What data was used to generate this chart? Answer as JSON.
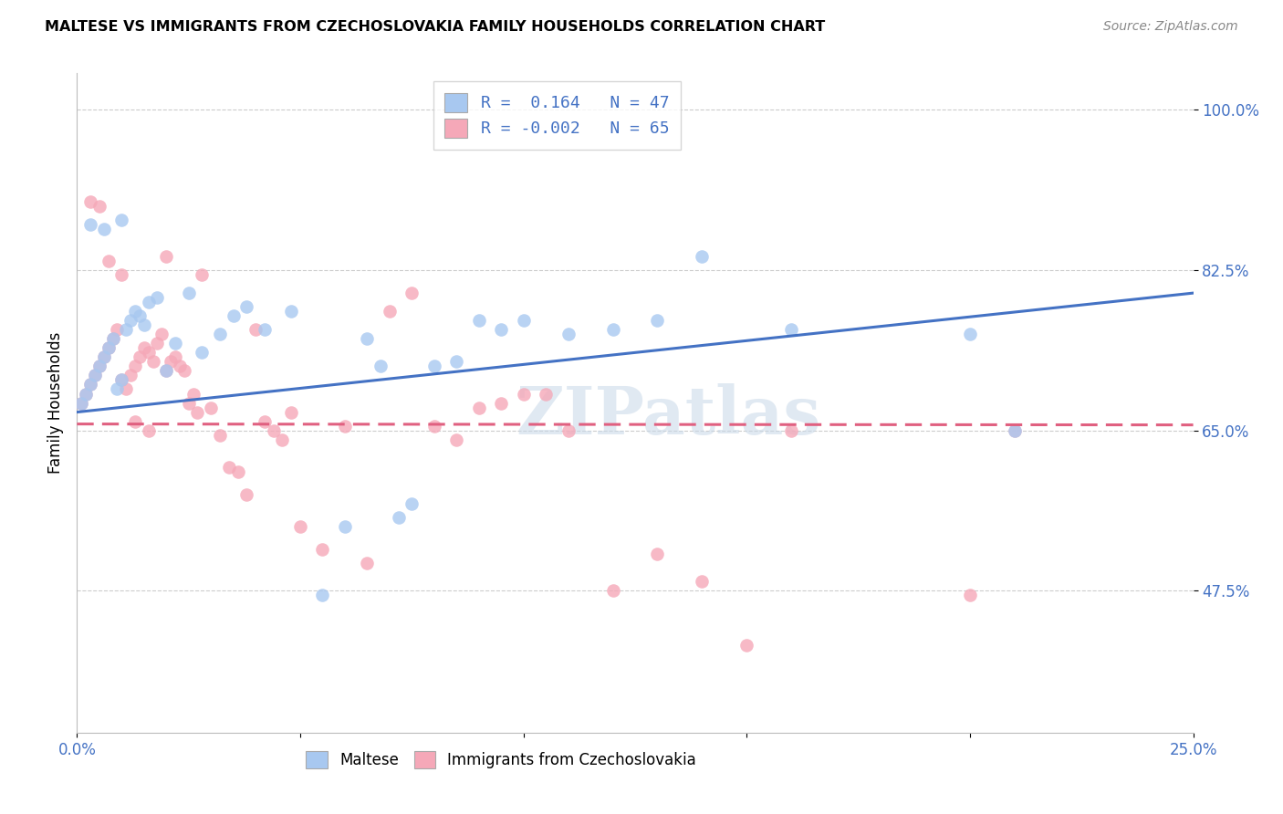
{
  "title": "MALTESE VS IMMIGRANTS FROM CZECHOSLOVAKIA FAMILY HOUSEHOLDS CORRELATION CHART",
  "source": "Source: ZipAtlas.com",
  "ylabel": "Family Households",
  "xlim": [
    0.0,
    0.25
  ],
  "ylim": [
    0.32,
    1.04
  ],
  "xticks": [
    0.0,
    0.05,
    0.1,
    0.15,
    0.2,
    0.25
  ],
  "xticklabels": [
    "0.0%",
    "",
    "",
    "",
    "",
    "25.0%"
  ],
  "yticks": [
    0.475,
    0.65,
    0.825,
    1.0
  ],
  "yticklabels": [
    "47.5%",
    "65.0%",
    "82.5%",
    "100.0%"
  ],
  "legend1_R": " 0.164",
  "legend1_N": "47",
  "legend2_R": "-0.002",
  "legend2_N": "65",
  "blue_color": "#A8C8F0",
  "pink_color": "#F5A8B8",
  "blue_line_color": "#4472C4",
  "pink_line_color": "#E06080",
  "watermark": "ZIPatlas",
  "maltese_x": [
    0.001,
    0.002,
    0.003,
    0.004,
    0.005,
    0.006,
    0.007,
    0.008,
    0.009,
    0.01,
    0.011,
    0.012,
    0.013,
    0.014,
    0.015,
    0.016,
    0.018,
    0.02,
    0.022,
    0.025,
    0.028,
    0.032,
    0.035,
    0.038,
    0.042,
    0.048,
    0.055,
    0.06,
    0.065,
    0.068,
    0.072,
    0.075,
    0.08,
    0.085,
    0.09,
    0.095,
    0.1,
    0.11,
    0.12,
    0.13,
    0.14,
    0.16,
    0.2,
    0.21,
    0.003,
    0.006,
    0.01
  ],
  "maltese_y": [
    0.68,
    0.69,
    0.7,
    0.71,
    0.72,
    0.73,
    0.74,
    0.75,
    0.695,
    0.705,
    0.76,
    0.77,
    0.78,
    0.775,
    0.765,
    0.79,
    0.795,
    0.715,
    0.745,
    0.8,
    0.735,
    0.755,
    0.775,
    0.785,
    0.76,
    0.78,
    0.47,
    0.545,
    0.75,
    0.72,
    0.555,
    0.57,
    0.72,
    0.725,
    0.77,
    0.76,
    0.77,
    0.755,
    0.76,
    0.77,
    0.84,
    0.76,
    0.755,
    0.65,
    0.875,
    0.87,
    0.88
  ],
  "czech_x": [
    0.001,
    0.002,
    0.003,
    0.004,
    0.005,
    0.006,
    0.007,
    0.008,
    0.009,
    0.01,
    0.011,
    0.012,
    0.013,
    0.014,
    0.015,
    0.016,
    0.017,
    0.018,
    0.019,
    0.02,
    0.021,
    0.022,
    0.023,
    0.024,
    0.025,
    0.026,
    0.027,
    0.028,
    0.03,
    0.032,
    0.034,
    0.036,
    0.038,
    0.04,
    0.042,
    0.044,
    0.046,
    0.048,
    0.05,
    0.055,
    0.06,
    0.065,
    0.07,
    0.075,
    0.08,
    0.085,
    0.09,
    0.095,
    0.1,
    0.105,
    0.11,
    0.12,
    0.13,
    0.14,
    0.15,
    0.16,
    0.2,
    0.21,
    0.003,
    0.005,
    0.007,
    0.01,
    0.013,
    0.016,
    0.02
  ],
  "czech_y": [
    0.68,
    0.69,
    0.7,
    0.71,
    0.72,
    0.73,
    0.74,
    0.75,
    0.76,
    0.705,
    0.695,
    0.71,
    0.72,
    0.73,
    0.74,
    0.735,
    0.725,
    0.745,
    0.755,
    0.715,
    0.725,
    0.73,
    0.72,
    0.715,
    0.68,
    0.69,
    0.67,
    0.82,
    0.675,
    0.645,
    0.61,
    0.605,
    0.58,
    0.76,
    0.66,
    0.65,
    0.64,
    0.67,
    0.545,
    0.52,
    0.655,
    0.505,
    0.78,
    0.8,
    0.655,
    0.64,
    0.675,
    0.68,
    0.69,
    0.69,
    0.65,
    0.475,
    0.515,
    0.485,
    0.415,
    0.65,
    0.47,
    0.65,
    0.9,
    0.895,
    0.835,
    0.82,
    0.66,
    0.65,
    0.84
  ],
  "blue_line_x0": 0.0,
  "blue_line_y0": 0.67,
  "blue_line_x1": 0.25,
  "blue_line_y1": 0.8,
  "pink_line_x0": 0.0,
  "pink_line_y0": 0.657,
  "pink_line_x1": 0.25,
  "pink_line_y1": 0.656
}
